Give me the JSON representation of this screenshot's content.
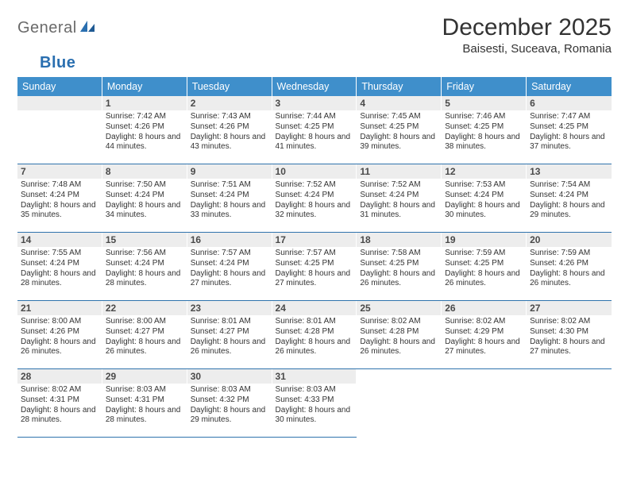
{
  "logo": {
    "word1": "General",
    "word2": "Blue"
  },
  "title": "December 2025",
  "location": "Baisesti, Suceava, Romania",
  "colors": {
    "header_bg": "#3f8fcb",
    "header_text": "#ffffff",
    "rule": "#2f73ad",
    "daynum_bg": "#ededed",
    "text": "#333333",
    "logo_gray": "#6a6a6a",
    "logo_blue": "#2a6fb0"
  },
  "weekdays": [
    "Sunday",
    "Monday",
    "Tuesday",
    "Wednesday",
    "Thursday",
    "Friday",
    "Saturday"
  ],
  "weeks": [
    [
      {
        "empty": true
      },
      {
        "d": "1",
        "sr": "7:42 AM",
        "ss": "4:26 PM",
        "dl": "8 hours and 44 minutes."
      },
      {
        "d": "2",
        "sr": "7:43 AM",
        "ss": "4:26 PM",
        "dl": "8 hours and 43 minutes."
      },
      {
        "d": "3",
        "sr": "7:44 AM",
        "ss": "4:25 PM",
        "dl": "8 hours and 41 minutes."
      },
      {
        "d": "4",
        "sr": "7:45 AM",
        "ss": "4:25 PM",
        "dl": "8 hours and 39 minutes."
      },
      {
        "d": "5",
        "sr": "7:46 AM",
        "ss": "4:25 PM",
        "dl": "8 hours and 38 minutes."
      },
      {
        "d": "6",
        "sr": "7:47 AM",
        "ss": "4:25 PM",
        "dl": "8 hours and 37 minutes."
      }
    ],
    [
      {
        "d": "7",
        "sr": "7:48 AM",
        "ss": "4:24 PM",
        "dl": "8 hours and 35 minutes."
      },
      {
        "d": "8",
        "sr": "7:50 AM",
        "ss": "4:24 PM",
        "dl": "8 hours and 34 minutes."
      },
      {
        "d": "9",
        "sr": "7:51 AM",
        "ss": "4:24 PM",
        "dl": "8 hours and 33 minutes."
      },
      {
        "d": "10",
        "sr": "7:52 AM",
        "ss": "4:24 PM",
        "dl": "8 hours and 32 minutes."
      },
      {
        "d": "11",
        "sr": "7:52 AM",
        "ss": "4:24 PM",
        "dl": "8 hours and 31 minutes."
      },
      {
        "d": "12",
        "sr": "7:53 AM",
        "ss": "4:24 PM",
        "dl": "8 hours and 30 minutes."
      },
      {
        "d": "13",
        "sr": "7:54 AM",
        "ss": "4:24 PM",
        "dl": "8 hours and 29 minutes."
      }
    ],
    [
      {
        "d": "14",
        "sr": "7:55 AM",
        "ss": "4:24 PM",
        "dl": "8 hours and 28 minutes."
      },
      {
        "d": "15",
        "sr": "7:56 AM",
        "ss": "4:24 PM",
        "dl": "8 hours and 28 minutes."
      },
      {
        "d": "16",
        "sr": "7:57 AM",
        "ss": "4:24 PM",
        "dl": "8 hours and 27 minutes."
      },
      {
        "d": "17",
        "sr": "7:57 AM",
        "ss": "4:25 PM",
        "dl": "8 hours and 27 minutes."
      },
      {
        "d": "18",
        "sr": "7:58 AM",
        "ss": "4:25 PM",
        "dl": "8 hours and 26 minutes."
      },
      {
        "d": "19",
        "sr": "7:59 AM",
        "ss": "4:25 PM",
        "dl": "8 hours and 26 minutes."
      },
      {
        "d": "20",
        "sr": "7:59 AM",
        "ss": "4:26 PM",
        "dl": "8 hours and 26 minutes."
      }
    ],
    [
      {
        "d": "21",
        "sr": "8:00 AM",
        "ss": "4:26 PM",
        "dl": "8 hours and 26 minutes."
      },
      {
        "d": "22",
        "sr": "8:00 AM",
        "ss": "4:27 PM",
        "dl": "8 hours and 26 minutes."
      },
      {
        "d": "23",
        "sr": "8:01 AM",
        "ss": "4:27 PM",
        "dl": "8 hours and 26 minutes."
      },
      {
        "d": "24",
        "sr": "8:01 AM",
        "ss": "4:28 PM",
        "dl": "8 hours and 26 minutes."
      },
      {
        "d": "25",
        "sr": "8:02 AM",
        "ss": "4:28 PM",
        "dl": "8 hours and 26 minutes."
      },
      {
        "d": "26",
        "sr": "8:02 AM",
        "ss": "4:29 PM",
        "dl": "8 hours and 27 minutes."
      },
      {
        "d": "27",
        "sr": "8:02 AM",
        "ss": "4:30 PM",
        "dl": "8 hours and 27 minutes."
      }
    ],
    [
      {
        "d": "28",
        "sr": "8:02 AM",
        "ss": "4:31 PM",
        "dl": "8 hours and 28 minutes."
      },
      {
        "d": "29",
        "sr": "8:03 AM",
        "ss": "4:31 PM",
        "dl": "8 hours and 28 minutes."
      },
      {
        "d": "30",
        "sr": "8:03 AM",
        "ss": "4:32 PM",
        "dl": "8 hours and 29 minutes."
      },
      {
        "d": "31",
        "sr": "8:03 AM",
        "ss": "4:33 PM",
        "dl": "8 hours and 30 minutes."
      },
      {
        "empty": true
      },
      {
        "empty": true
      },
      {
        "empty": true
      }
    ]
  ],
  "labels": {
    "sunrise": "Sunrise:",
    "sunset": "Sunset:",
    "daylight": "Daylight:"
  }
}
